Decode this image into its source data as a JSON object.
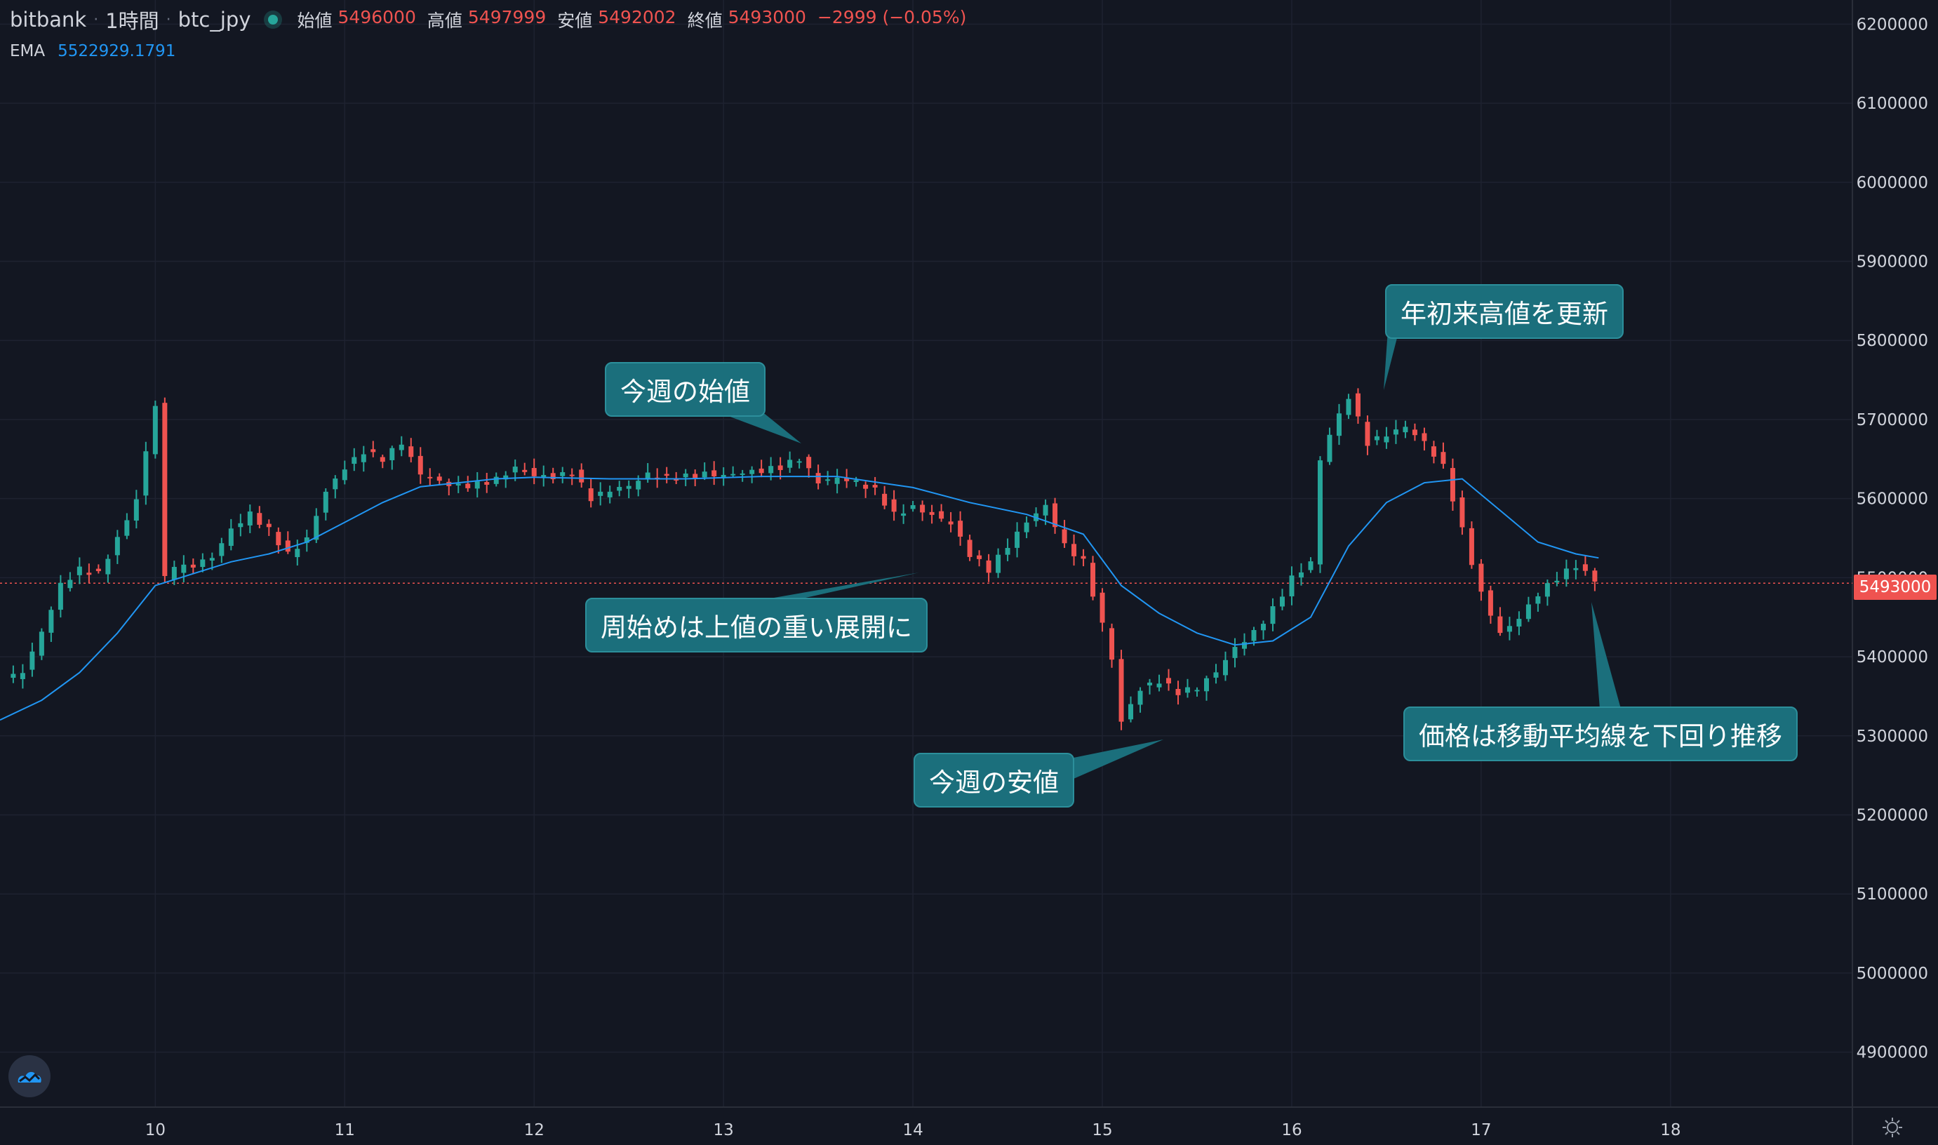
{
  "header": {
    "exchange": "bitbank",
    "interval": "1時間",
    "symbol": "btc_jpy",
    "ohlc": [
      {
        "label": "始値",
        "value": "5496000"
      },
      {
        "label": "高値",
        "value": "5497999"
      },
      {
        "label": "安値",
        "value": "5492002"
      },
      {
        "label": "終値",
        "value": "5493000"
      }
    ],
    "change": "−2999 (−0.05%)"
  },
  "indicator": {
    "name": "EMA",
    "value": "5522929.1791"
  },
  "last_price_label": "5493000",
  "annotations": [
    "今週の始値",
    "年初来高値を更新",
    "周始めは上値の重い展開に",
    "今週の安値",
    "価格は移動平均線を下回り推移"
  ],
  "colors": {
    "background": "#131722",
    "up": "#26a69a",
    "down": "#ef5350",
    "ema": "#2196f3",
    "annotation": "#1b6f7c"
  },
  "icons": {
    "logo": "cloud-logo-icon",
    "settings": "gear-icon"
  },
  "chart_data": {
    "type": "candlestick",
    "y_range": [
      4850000,
      6250000
    ],
    "y_ticks": [
      4900000,
      5000000,
      5100000,
      5200000,
      5300000,
      5400000,
      5500000,
      5600000,
      5700000,
      5800000,
      5900000,
      6000000,
      6100000,
      6200000
    ],
    "x_ticks": [
      "10",
      "11",
      "12",
      "13",
      "14",
      "15",
      "16",
      "17",
      "18"
    ],
    "x_unit": "day of month",
    "x_range": [
      9.18,
      18.96
    ],
    "last_price": 5493000,
    "closes": [
      [
        9.2,
        5370000
      ],
      [
        9.3,
        5380000
      ],
      [
        9.4,
        5430000
      ],
      [
        9.5,
        5490000
      ],
      [
        9.6,
        5510000
      ],
      [
        9.7,
        5505000
      ],
      [
        9.8,
        5550000
      ],
      [
        9.9,
        5600000
      ],
      [
        10.0,
        5720000
      ],
      [
        10.05,
        5500000
      ],
      [
        10.1,
        5510000
      ],
      [
        10.2,
        5515000
      ],
      [
        10.3,
        5525000
      ],
      [
        10.4,
        5560000
      ],
      [
        10.5,
        5580000
      ],
      [
        10.6,
        5560000
      ],
      [
        10.7,
        5530000
      ],
      [
        10.8,
        5550000
      ],
      [
        10.9,
        5610000
      ],
      [
        11.0,
        5640000
      ],
      [
        11.1,
        5660000
      ],
      [
        11.2,
        5650000
      ],
      [
        11.3,
        5670000
      ],
      [
        11.4,
        5630000
      ],
      [
        11.5,
        5620000
      ],
      [
        11.6,
        5615000
      ],
      [
        11.7,
        5618000
      ],
      [
        11.8,
        5625000
      ],
      [
        11.9,
        5640000
      ],
      [
        12.0,
        5630000
      ],
      [
        12.1,
        5628000
      ],
      [
        12.2,
        5633000
      ],
      [
        12.3,
        5600000
      ],
      [
        12.4,
        5610000
      ],
      [
        12.5,
        5615000
      ],
      [
        12.6,
        5630000
      ],
      [
        12.7,
        5625000
      ],
      [
        12.8,
        5628000
      ],
      [
        12.9,
        5632000
      ],
      [
        13.0,
        5630000
      ],
      [
        13.1,
        5634000
      ],
      [
        13.2,
        5636000
      ],
      [
        13.3,
        5640000
      ],
      [
        13.4,
        5650000
      ],
      [
        13.5,
        5620000
      ],
      [
        13.6,
        5625000
      ],
      [
        13.7,
        5620000
      ],
      [
        13.8,
        5610000
      ],
      [
        13.9,
        5580000
      ],
      [
        14.0,
        5590000
      ],
      [
        14.1,
        5580000
      ],
      [
        14.2,
        5570000
      ],
      [
        14.3,
        5530000
      ],
      [
        14.4,
        5510000
      ],
      [
        14.5,
        5540000
      ],
      [
        14.6,
        5570000
      ],
      [
        14.7,
        5590000
      ],
      [
        14.8,
        5540000
      ],
      [
        14.9,
        5520000
      ],
      [
        15.0,
        5440000
      ],
      [
        15.05,
        5400000
      ],
      [
        15.1,
        5320000
      ],
      [
        15.2,
        5360000
      ],
      [
        15.3,
        5370000
      ],
      [
        15.4,
        5355000
      ],
      [
        15.5,
        5360000
      ],
      [
        15.6,
        5380000
      ],
      [
        15.7,
        5410000
      ],
      [
        15.8,
        5430000
      ],
      [
        15.9,
        5460000
      ],
      [
        16.0,
        5500000
      ],
      [
        16.1,
        5520000
      ],
      [
        16.15,
        5650000
      ],
      [
        16.2,
        5680000
      ],
      [
        16.3,
        5730000
      ],
      [
        16.4,
        5670000
      ],
      [
        16.5,
        5680000
      ],
      [
        16.6,
        5690000
      ],
      [
        16.7,
        5670000
      ],
      [
        16.8,
        5640000
      ],
      [
        16.9,
        5560000
      ],
      [
        17.0,
        5480000
      ],
      [
        17.1,
        5430000
      ],
      [
        17.2,
        5450000
      ],
      [
        17.3,
        5480000
      ],
      [
        17.4,
        5500000
      ],
      [
        17.5,
        5515000
      ],
      [
        17.55,
        5505000
      ],
      [
        17.6,
        5493000
      ]
    ],
    "ema": [
      [
        9.18,
        5320000
      ],
      [
        9.4,
        5345000
      ],
      [
        9.6,
        5380000
      ],
      [
        9.8,
        5430000
      ],
      [
        10.0,
        5490000
      ],
      [
        10.2,
        5505000
      ],
      [
        10.4,
        5520000
      ],
      [
        10.6,
        5530000
      ],
      [
        10.8,
        5545000
      ],
      [
        11.0,
        5570000
      ],
      [
        11.2,
        5595000
      ],
      [
        11.4,
        5615000
      ],
      [
        11.6,
        5620000
      ],
      [
        11.8,
        5625000
      ],
      [
        12.0,
        5627000
      ],
      [
        12.4,
        5625000
      ],
      [
        12.8,
        5625000
      ],
      [
        13.2,
        5628000
      ],
      [
        13.6,
        5628000
      ],
      [
        14.0,
        5614000
      ],
      [
        14.3,
        5595000
      ],
      [
        14.6,
        5580000
      ],
      [
        14.9,
        5555000
      ],
      [
        15.1,
        5490000
      ],
      [
        15.3,
        5455000
      ],
      [
        15.5,
        5430000
      ],
      [
        15.7,
        5415000
      ],
      [
        15.9,
        5420000
      ],
      [
        16.1,
        5450000
      ],
      [
        16.3,
        5540000
      ],
      [
        16.5,
        5595000
      ],
      [
        16.7,
        5620000
      ],
      [
        16.9,
        5625000
      ],
      [
        17.1,
        5585000
      ],
      [
        17.3,
        5545000
      ],
      [
        17.5,
        5530000
      ],
      [
        17.62,
        5525000
      ]
    ]
  }
}
